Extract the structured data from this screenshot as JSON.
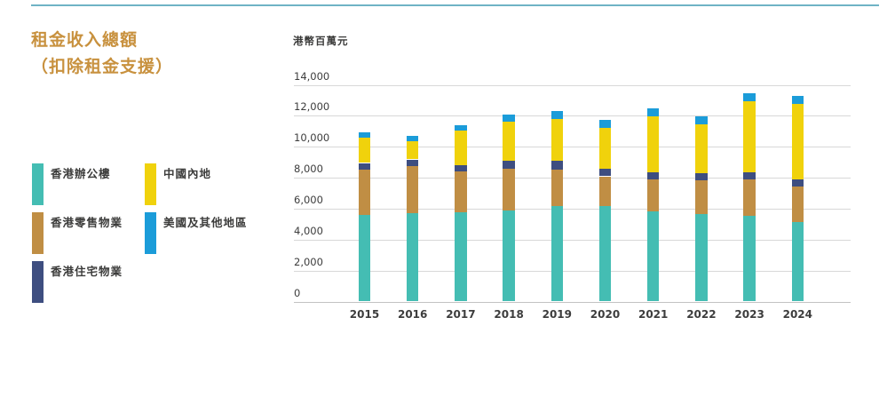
{
  "page": {
    "title_line1": "租金收入總額",
    "title_line2": "（扣除租金支援）",
    "title_color": "#C8913E",
    "top_rule_color": "#6FB3C5"
  },
  "legend": {
    "columns": [
      [
        {
          "label": "香港辦公樓",
          "color": "#44BDB3"
        },
        {
          "label": "香港零售物業",
          "color": "#C08E44"
        },
        {
          "label": "香港住宅物業",
          "color": "#3E4E80"
        }
      ],
      [
        {
          "label": "中國內地",
          "color": "#F0D20C"
        },
        {
          "label": "美國及其他地區",
          "color": "#1B9CD9"
        }
      ]
    ]
  },
  "chart_data": {
    "type": "bar",
    "stacked": true,
    "title": "租金收入總額（扣除租金支援）",
    "unit_label": "港幣百萬元",
    "xlabel": "",
    "ylabel": "港幣百萬元",
    "categories": [
      "2015",
      "2016",
      "2017",
      "2018",
      "2019",
      "2020",
      "2021",
      "2022",
      "2023",
      "2024"
    ],
    "series": [
      {
        "name": "香港辦公樓",
        "color": "#44BDB3",
        "values": [
          5620,
          5710,
          5770,
          5900,
          6150,
          6140,
          5850,
          5650,
          5520,
          5120
        ]
      },
      {
        "name": "香港零售物業",
        "color": "#C08E44",
        "values": [
          2900,
          3050,
          2610,
          2670,
          2380,
          1950,
          2060,
          2160,
          2390,
          2330
        ]
      },
      {
        "name": "香港住宅物業",
        "color": "#3E4E80",
        "values": [
          430,
          420,
          440,
          510,
          550,
          480,
          460,
          480,
          460,
          440
        ]
      },
      {
        "name": "中國內地",
        "color": "#F0D20C",
        "values": [
          1620,
          1200,
          2230,
          2530,
          2720,
          2670,
          3580,
          3140,
          4550,
          4870
        ]
      },
      {
        "name": "美國及其他地區",
        "color": "#1B9CD9",
        "values": [
          340,
          300,
          340,
          480,
          510,
          480,
          530,
          510,
          510,
          540
        ]
      }
    ],
    "totals": [
      10910,
      10680,
      11390,
      12090,
      12310,
      11720,
      12480,
      11940,
      13430,
      13300
    ],
    "ylim": [
      0,
      14000
    ],
    "ytick_step": 2000,
    "ytick_labels": [
      "0",
      "2,000",
      "4,000",
      "6,000",
      "8,000",
      "10,000",
      "12,000",
      "14,000"
    ],
    "grid": "horizontal",
    "legend_position": "left"
  }
}
